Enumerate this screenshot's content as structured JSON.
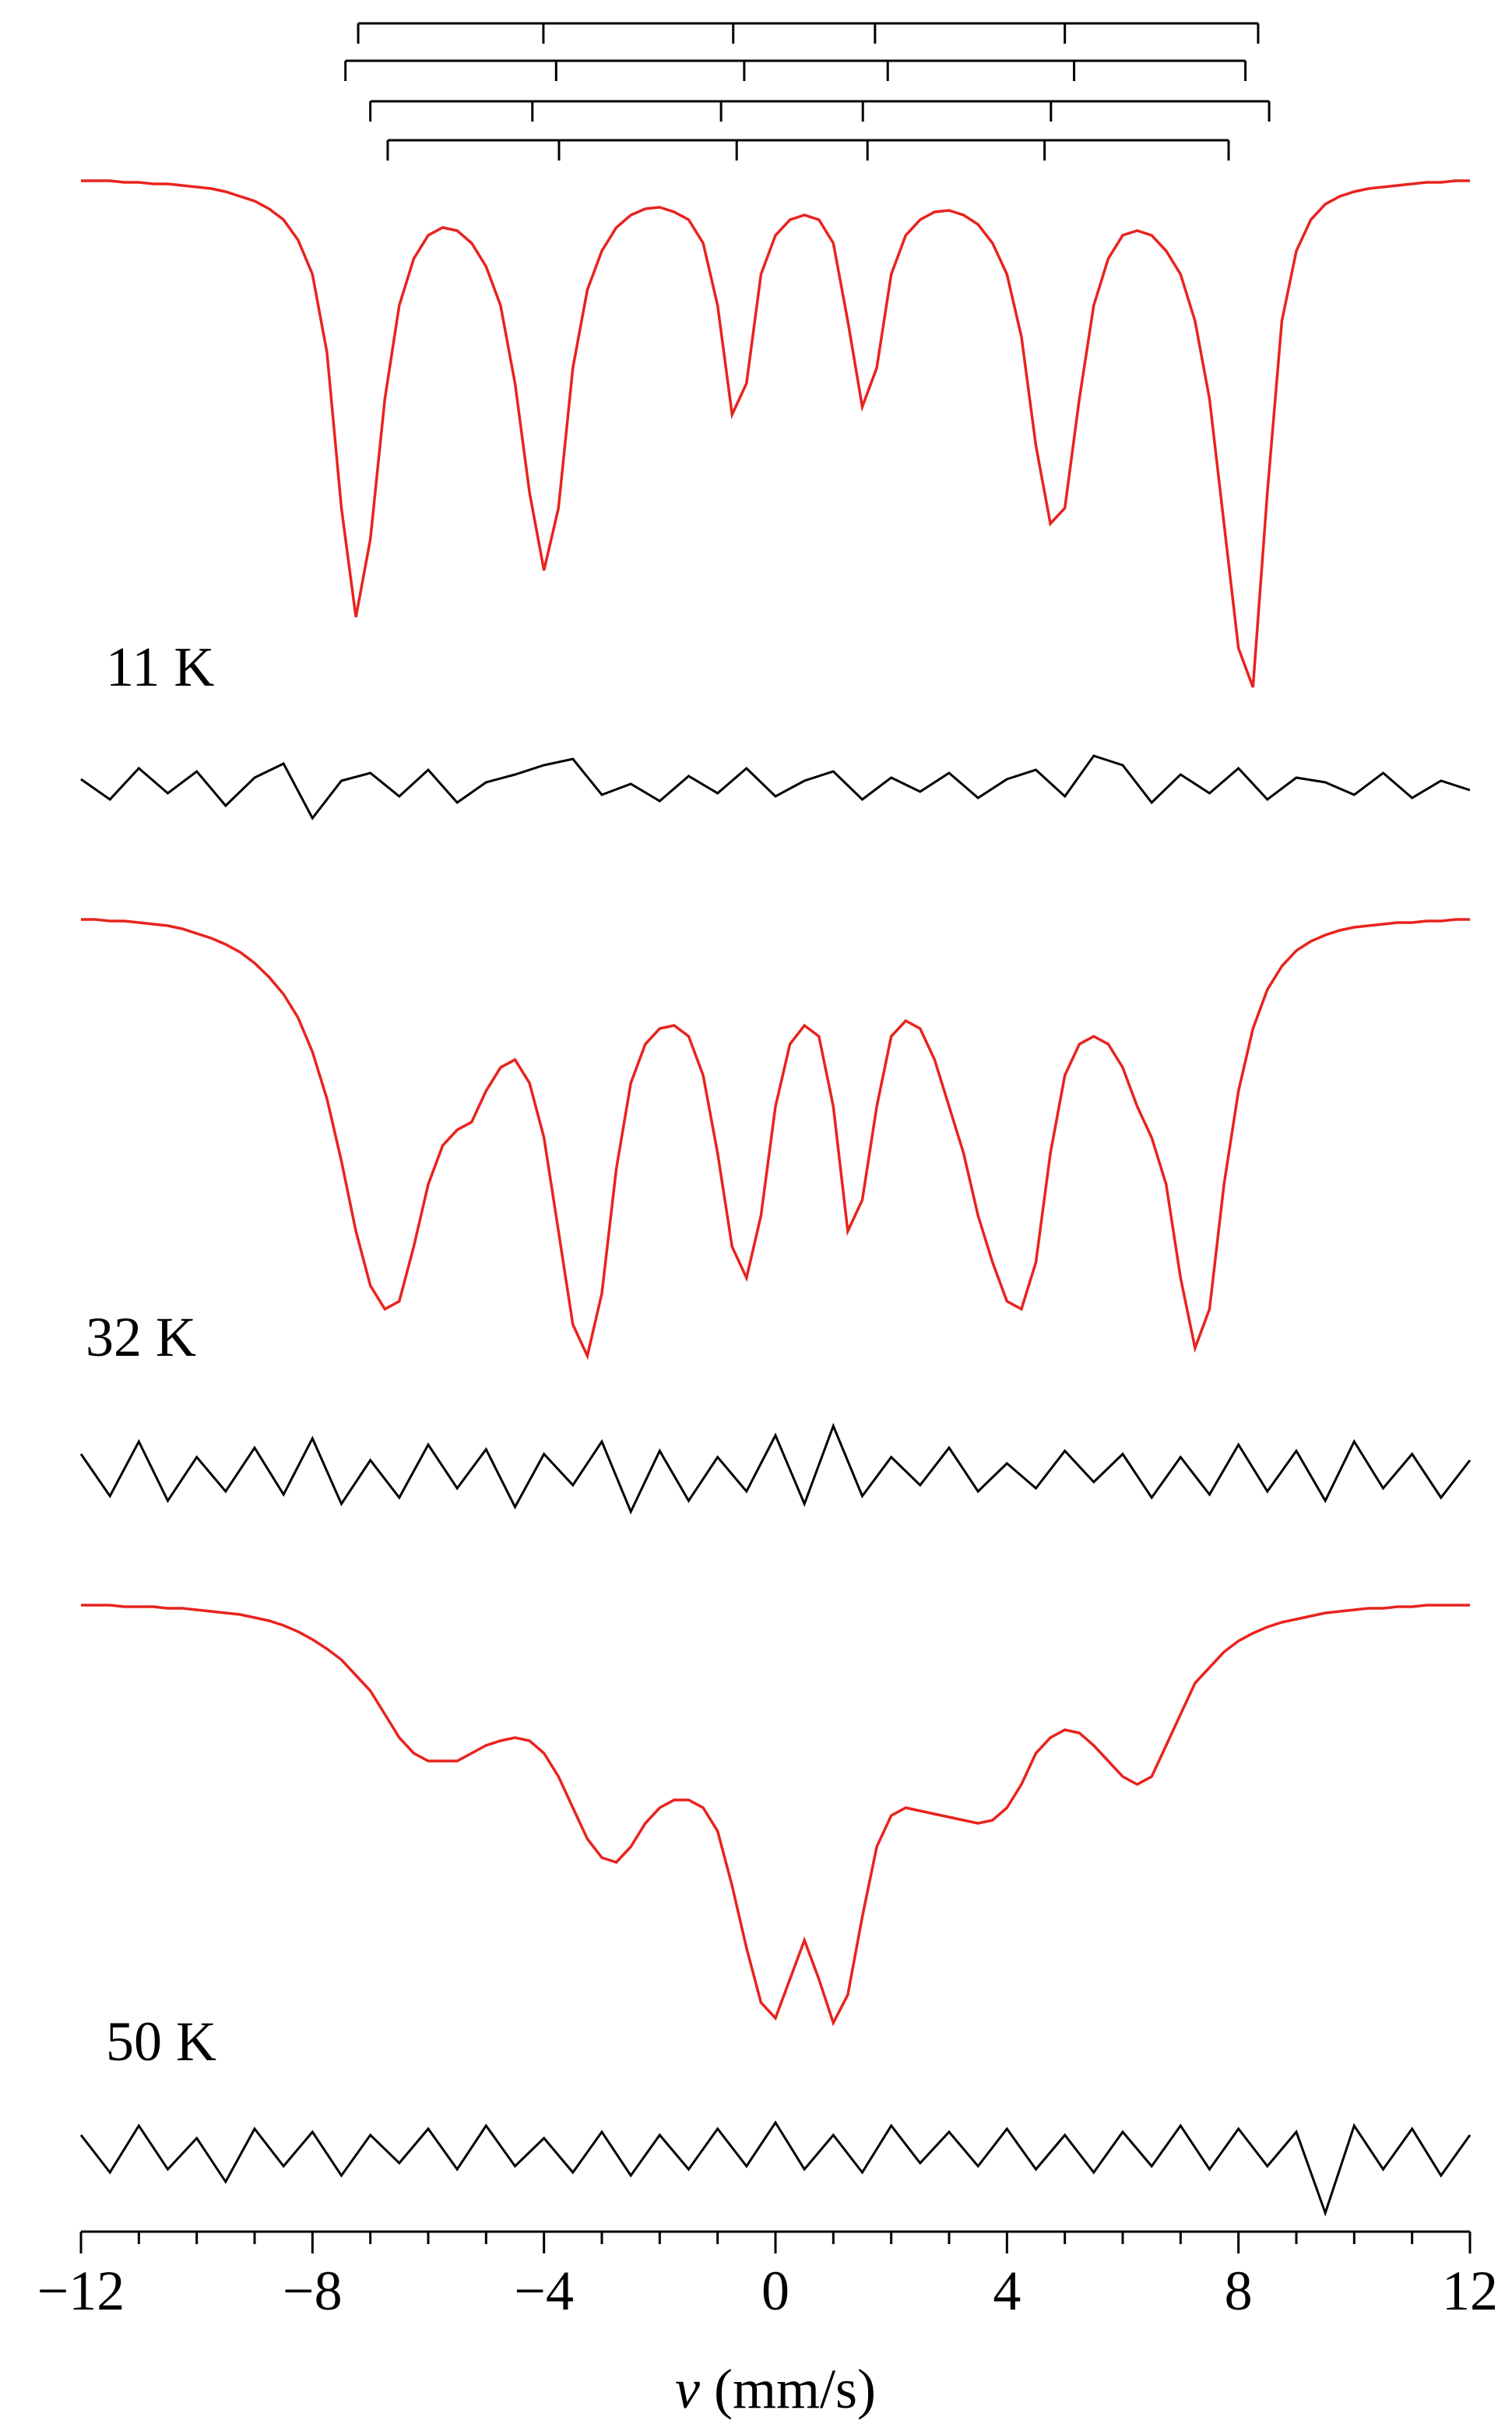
{
  "chart_data": {
    "type": "line",
    "xlabel_symbol": "v",
    "xlabel_unit": "(mm/s)",
    "xlim": [
      -12,
      12
    ],
    "xticks": [
      {
        "value": -12,
        "label": "−12"
      },
      {
        "value": -8,
        "label": "−8"
      },
      {
        "value": -4,
        "label": "−4"
      },
      0,
      4,
      8,
      12
    ],
    "xminorticks": [
      -11,
      -10,
      -9,
      -7,
      -6,
      -5,
      -3,
      -2,
      -1,
      1,
      2,
      3,
      5,
      6,
      7,
      9,
      10,
      11
    ],
    "ylim": [
      0.64,
      1.04
    ],
    "residual_ylim": [
      -0.04,
      0.04
    ],
    "fit_color": "#e8231f",
    "residual_color": "#000000",
    "sextets": [
      [
        -7.21,
        -4.01,
        -0.73,
        1.72,
        5.0,
        8.34
      ],
      [
        -7.43,
        -3.79,
        -0.54,
        1.94,
        5.16,
        8.12
      ],
      [
        -7.0,
        -4.2,
        -0.94,
        1.51,
        4.76,
        8.53
      ],
      [
        -6.7,
        -3.74,
        -0.67,
        1.59,
        4.65,
        7.83
      ]
    ],
    "x": [
      -12,
      -11.75,
      -11.5,
      -11.25,
      -11,
      -10.75,
      -10.5,
      -10.25,
      -10,
      -9.75,
      -9.5,
      -9.25,
      -9,
      -8.75,
      -8.5,
      -8.25,
      -8,
      -7.75,
      -7.5,
      -7.25,
      -7,
      -6.75,
      -6.5,
      -6.25,
      -6,
      -5.75,
      -5.5,
      -5.25,
      -5,
      -4.75,
      -4.5,
      -4.25,
      -4,
      -3.75,
      -3.5,
      -3.25,
      -3,
      -2.75,
      -2.5,
      -2.25,
      -2,
      -1.75,
      -1.5,
      -1.25,
      -1,
      -0.75,
      -0.5,
      -0.25,
      0,
      0.25,
      0.5,
      0.75,
      1,
      1.25,
      1.5,
      1.75,
      2,
      2.25,
      2.5,
      2.75,
      3,
      3.25,
      3.5,
      3.75,
      4,
      4.25,
      4.5,
      4.75,
      5,
      5.25,
      5.5,
      5.75,
      6,
      6.25,
      6.5,
      6.75,
      7,
      7.25,
      7.5,
      7.75,
      8,
      8.25,
      8.5,
      8.75,
      9,
      9.25,
      9.5,
      9.75,
      10,
      10.25,
      10.5,
      10.75,
      11,
      11.25,
      11.5,
      11.75,
      12
    ],
    "residual_x": [
      -12,
      -11.5,
      -11,
      -10.5,
      -10,
      -9.5,
      -9,
      -8.5,
      -8,
      -7.5,
      -7,
      -6.5,
      -6,
      -5.5,
      -5,
      -4.5,
      -4,
      -3.5,
      -3,
      -2.5,
      -2,
      -1.5,
      -1,
      -0.5,
      0,
      0.5,
      1,
      1.5,
      2,
      2.5,
      3,
      3.5,
      4,
      4.5,
      5,
      5.5,
      6,
      6.5,
      7,
      7.5,
      8,
      8.5,
      9,
      9.5,
      10,
      10.5,
      11,
      11.5,
      12
    ],
    "panels": [
      {
        "label": "11 K",
        "values": [
          1.0,
          1.0,
          1.0,
          0.999,
          0.999,
          0.998,
          0.998,
          0.997,
          0.996,
          0.995,
          0.993,
          0.99,
          0.987,
          0.982,
          0.975,
          0.962,
          0.94,
          0.89,
          0.79,
          0.72,
          0.77,
          0.86,
          0.92,
          0.95,
          0.965,
          0.97,
          0.968,
          0.96,
          0.945,
          0.92,
          0.87,
          0.8,
          0.75,
          0.79,
          0.88,
          0.93,
          0.955,
          0.97,
          0.978,
          0.982,
          0.983,
          0.98,
          0.975,
          0.96,
          0.92,
          0.85,
          0.87,
          0.94,
          0.965,
          0.975,
          0.978,
          0.975,
          0.96,
          0.91,
          0.855,
          0.88,
          0.94,
          0.965,
          0.975,
          0.98,
          0.981,
          0.978,
          0.972,
          0.96,
          0.94,
          0.9,
          0.83,
          0.78,
          0.79,
          0.86,
          0.92,
          0.95,
          0.965,
          0.968,
          0.965,
          0.955,
          0.94,
          0.91,
          0.86,
          0.78,
          0.7,
          0.675,
          0.8,
          0.91,
          0.955,
          0.975,
          0.985,
          0.99,
          0.993,
          0.995,
          0.996,
          0.997,
          0.998,
          0.999,
          0.999,
          1.0,
          1.0
        ],
        "residuals": [
          0.005,
          -0.008,
          0.012,
          -0.004,
          0.01,
          -0.012,
          0.006,
          0.015,
          -0.02,
          0.004,
          0.009,
          -0.006,
          0.011,
          -0.01,
          0.003,
          0.008,
          0.014,
          0.018,
          -0.005,
          0.002,
          -0.009,
          0.007,
          -0.004,
          0.012,
          -0.006,
          0.004,
          0.01,
          -0.008,
          0.006,
          -0.003,
          0.009,
          -0.007,
          0.005,
          0.011,
          -0.006,
          0.02,
          0.014,
          -0.01,
          0.008,
          -0.004,
          0.012,
          -0.008,
          0.006,
          0.003,
          -0.005,
          0.009,
          -0.007,
          0.004,
          -0.002
        ]
      },
      {
        "label": "32 K",
        "values": [
          1.0,
          1.0,
          0.999,
          0.999,
          0.998,
          0.997,
          0.996,
          0.994,
          0.991,
          0.988,
          0.984,
          0.979,
          0.972,
          0.963,
          0.952,
          0.937,
          0.915,
          0.885,
          0.845,
          0.8,
          0.765,
          0.75,
          0.755,
          0.79,
          0.83,
          0.855,
          0.865,
          0.87,
          0.89,
          0.905,
          0.91,
          0.895,
          0.86,
          0.8,
          0.74,
          0.72,
          0.76,
          0.84,
          0.895,
          0.92,
          0.93,
          0.932,
          0.925,
          0.9,
          0.85,
          0.79,
          0.77,
          0.81,
          0.88,
          0.92,
          0.932,
          0.925,
          0.88,
          0.8,
          0.82,
          0.88,
          0.925,
          0.935,
          0.93,
          0.91,
          0.88,
          0.85,
          0.81,
          0.78,
          0.755,
          0.75,
          0.78,
          0.85,
          0.9,
          0.92,
          0.925,
          0.92,
          0.905,
          0.88,
          0.86,
          0.83,
          0.77,
          0.725,
          0.75,
          0.83,
          0.89,
          0.93,
          0.955,
          0.97,
          0.98,
          0.986,
          0.99,
          0.993,
          0.995,
          0.996,
          0.997,
          0.998,
          0.998,
          0.999,
          0.999,
          1.0,
          1.0
        ],
        "residuals": [
          0.012,
          -0.015,
          0.02,
          -0.018,
          0.01,
          -0.012,
          0.016,
          -0.014,
          0.022,
          -0.02,
          0.008,
          -0.016,
          0.018,
          -0.01,
          0.015,
          -0.022,
          0.012,
          -0.008,
          0.02,
          -0.025,
          0.014,
          -0.018,
          0.01,
          -0.012,
          0.024,
          -0.02,
          0.03,
          -0.015,
          0.01,
          -0.008,
          0.016,
          -0.012,
          0.006,
          -0.01,
          0.014,
          -0.006,
          0.012,
          -0.016,
          0.01,
          -0.014,
          0.018,
          -0.012,
          0.014,
          -0.018,
          0.02,
          -0.01,
          0.012,
          -0.016,
          0.008
        ]
      },
      {
        "label": "50 K",
        "values": [
          1.0,
          1.0,
          1.0,
          0.999,
          0.999,
          0.999,
          0.998,
          0.998,
          0.997,
          0.996,
          0.995,
          0.994,
          0.992,
          0.99,
          0.987,
          0.983,
          0.978,
          0.972,
          0.965,
          0.955,
          0.945,
          0.93,
          0.915,
          0.905,
          0.9,
          0.9,
          0.9,
          0.905,
          0.91,
          0.913,
          0.915,
          0.913,
          0.905,
          0.89,
          0.87,
          0.85,
          0.838,
          0.835,
          0.845,
          0.86,
          0.87,
          0.875,
          0.875,
          0.87,
          0.855,
          0.82,
          0.78,
          0.745,
          0.735,
          0.76,
          0.785,
          0.76,
          0.732,
          0.75,
          0.8,
          0.845,
          0.865,
          0.87,
          0.868,
          0.866,
          0.864,
          0.862,
          0.86,
          0.862,
          0.87,
          0.885,
          0.905,
          0.915,
          0.92,
          0.918,
          0.91,
          0.9,
          0.89,
          0.885,
          0.89,
          0.91,
          0.93,
          0.95,
          0.96,
          0.97,
          0.977,
          0.982,
          0.986,
          0.989,
          0.991,
          0.993,
          0.995,
          0.996,
          0.997,
          0.998,
          0.998,
          0.999,
          0.999,
          1.0,
          1.0,
          1.0,
          1.0
        ],
        "residuals": [
          0.01,
          -0.014,
          0.016,
          -0.012,
          0.008,
          -0.02,
          0.014,
          -0.01,
          0.012,
          -0.016,
          0.01,
          -0.008,
          0.014,
          -0.012,
          0.016,
          -0.01,
          0.008,
          -0.014,
          0.012,
          -0.016,
          0.01,
          -0.012,
          0.014,
          -0.01,
          0.018,
          -0.012,
          0.01,
          -0.014,
          0.016,
          -0.008,
          0.012,
          -0.01,
          0.014,
          -0.012,
          0.01,
          -0.014,
          0.012,
          -0.01,
          0.016,
          -0.012,
          0.014,
          -0.01,
          0.012,
          -0.04,
          0.016,
          -0.012,
          0.014,
          -0.016,
          0.01
        ]
      }
    ]
  }
}
